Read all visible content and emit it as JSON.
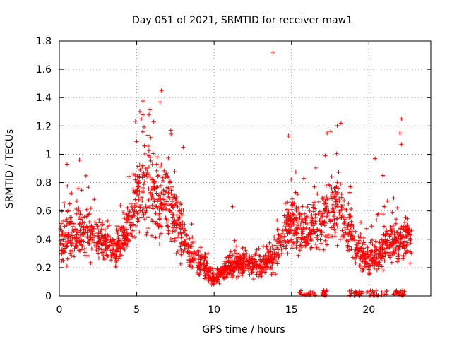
{
  "chart_data": {
    "type": "scatter",
    "title": "Day 051 of 2021, SRMTID for receiver maw1",
    "xlabel": "GPS time / hours",
    "ylabel": "SRMTID / TECUs",
    "xlim": [
      0,
      24
    ],
    "ylim": [
      0,
      1.8
    ],
    "xticks": [
      0,
      5,
      10,
      15,
      20
    ],
    "xtick_labels": [
      "0",
      "5",
      "10",
      "15",
      "20"
    ],
    "yticks": [
      0,
      0.2,
      0.4,
      0.6,
      0.8,
      1.0,
      1.2,
      1.4,
      1.6,
      1.8
    ],
    "ytick_labels": [
      "0",
      "0.2",
      "0.4",
      "0.6",
      "0.8",
      "1",
      "1.2",
      "1.4",
      "1.6",
      "1.8"
    ],
    "grid": true,
    "series": [
      {
        "name": "SRMTID",
        "marker": "+",
        "color": "#ff0000",
        "profile": [
          [
            0.0,
            0.38
          ],
          [
            0.5,
            0.42
          ],
          [
            1.0,
            0.4
          ],
          [
            1.5,
            0.45
          ],
          [
            2.0,
            0.45
          ],
          [
            2.5,
            0.4
          ],
          [
            3.0,
            0.36
          ],
          [
            3.5,
            0.35
          ],
          [
            4.0,
            0.38
          ],
          [
            4.5,
            0.5
          ],
          [
            5.0,
            0.7
          ],
          [
            5.5,
            0.75
          ],
          [
            6.0,
            0.7
          ],
          [
            6.5,
            0.68
          ],
          [
            7.0,
            0.68
          ],
          [
            7.5,
            0.55
          ],
          [
            8.0,
            0.42
          ],
          [
            8.5,
            0.3
          ],
          [
            9.0,
            0.25
          ],
          [
            9.5,
            0.2
          ],
          [
            10.0,
            0.1
          ],
          [
            10.5,
            0.18
          ],
          [
            11.0,
            0.22
          ],
          [
            11.5,
            0.22
          ],
          [
            12.0,
            0.25
          ],
          [
            12.5,
            0.2
          ],
          [
            13.0,
            0.2
          ],
          [
            13.5,
            0.25
          ],
          [
            14.0,
            0.3
          ],
          [
            14.5,
            0.45
          ],
          [
            15.0,
            0.5
          ],
          [
            15.5,
            0.48
          ],
          [
            16.0,
            0.45
          ],
          [
            16.5,
            0.48
          ],
          [
            17.0,
            0.5
          ],
          [
            17.5,
            0.62
          ],
          [
            18.0,
            0.65
          ],
          [
            18.5,
            0.5
          ],
          [
            19.0,
            0.4
          ],
          [
            19.5,
            0.3
          ],
          [
            20.0,
            0.25
          ],
          [
            20.5,
            0.3
          ],
          [
            21.0,
            0.35
          ],
          [
            21.5,
            0.4
          ],
          [
            22.0,
            0.35
          ],
          [
            22.5,
            0.42
          ]
        ],
        "highlights": [
          [
            13.8,
            1.72
          ],
          [
            6.6,
            1.45
          ],
          [
            6.5,
            1.37
          ],
          [
            5.3,
            1.25
          ],
          [
            5.8,
            1.28
          ],
          [
            6.1,
            1.23
          ],
          [
            7.2,
            1.17
          ],
          [
            5.0,
            1.09
          ],
          [
            22.1,
            1.25
          ],
          [
            22.0,
            1.15
          ],
          [
            18.2,
            1.22
          ],
          [
            17.3,
            1.15
          ],
          [
            14.8,
            1.13
          ],
          [
            20.4,
            0.97
          ],
          [
            1.3,
            0.96
          ],
          [
            0.5,
            0.93
          ],
          [
            11.2,
            0.63
          ],
          [
            20.9,
            0.85
          ],
          [
            22.1,
            1.07
          ],
          [
            8.0,
            1.05
          ]
        ],
        "zero_clusters": [
          [
            15.5,
            16.6
          ],
          [
            17.0,
            17.3
          ],
          [
            18.5,
            19.6
          ],
          [
            19.8,
            21.2
          ],
          [
            21.6,
            22.3
          ]
        ],
        "n_points": 2100,
        "note": "dense scatter; values given as approximate typical level per half hour plus notable outliers"
      }
    ]
  }
}
